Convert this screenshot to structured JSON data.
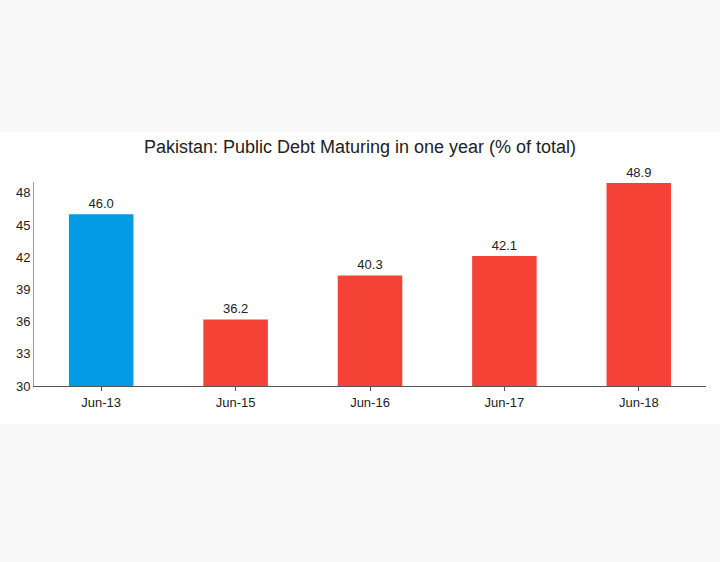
{
  "chart_data": {
    "type": "bar",
    "title": "Pakistan: Public Debt Maturing in one year (% of total)",
    "categories": [
      "Jun-13",
      "Jun-15",
      "Jun-16",
      "Jun-17",
      "Jun-18"
    ],
    "values": [
      46.0,
      36.2,
      40.3,
      42.1,
      48.9
    ],
    "value_labels": [
      "46.0",
      "36.2",
      "40.3",
      "42.1",
      "48.9"
    ],
    "colors": [
      "#039be5",
      "#f44336",
      "#f44336",
      "#f44336",
      "#f44336"
    ],
    "ylim": [
      30,
      49
    ],
    "yticks": [
      30,
      33,
      36,
      39,
      42,
      45,
      48
    ],
    "grid": false,
    "data_labels": true
  }
}
